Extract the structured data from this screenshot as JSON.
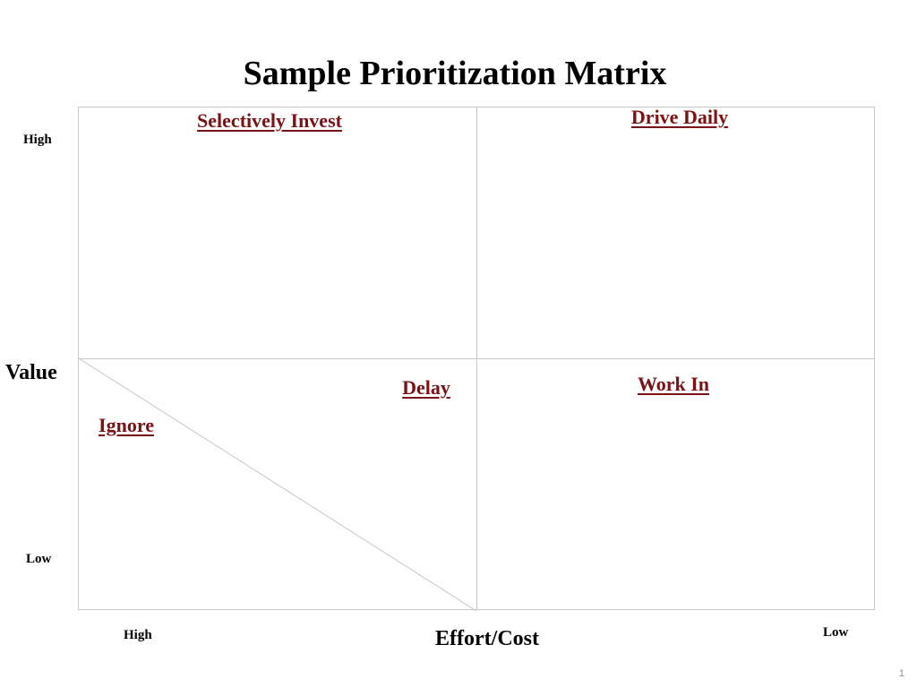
{
  "title": "Sample Prioritization Matrix",
  "quadrants": {
    "top_left": "Selectively Invest",
    "top_right": "Drive Daily",
    "bottom_left_upper": "Delay",
    "bottom_left_lower": "Ignore",
    "bottom_right": "Work In"
  },
  "y_axis": {
    "label": "Value",
    "high": "High",
    "low": "Low"
  },
  "x_axis": {
    "label": "Effort/Cost",
    "high": "High",
    "low": "Low"
  },
  "page_number": "1",
  "colors": {
    "quadrant_label": "#7b1316",
    "grid_line": "#c8c8c8"
  }
}
